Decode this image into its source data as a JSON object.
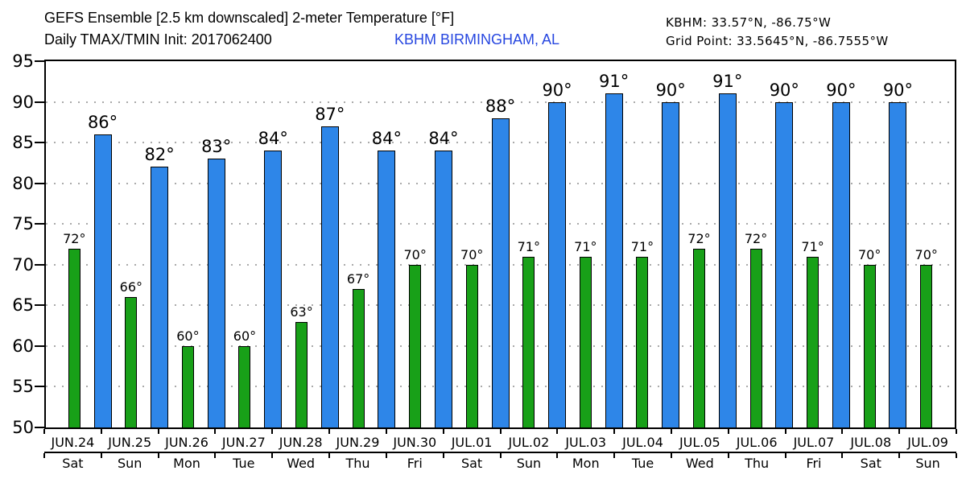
{
  "header": {
    "title_line1": "GEFS Ensemble [2.5 km downscaled] 2-meter Temperature [°F]",
    "title_line2": "Daily TMAX/TMIN Init: 2017062400",
    "station": "KBHM BIRMINGHAM, AL",
    "station_coords": "KBHM: 33.57°N, -86.75°W",
    "grid_point": "Grid Point: 33.5645°N, -86.7555°W"
  },
  "colors": {
    "tmax_bar": "#2e86e8",
    "tmin_bar": "#18a018",
    "bar_outline": "#000000",
    "station_text": "#2646e0",
    "grid_dots": "#aaaaaa",
    "axis": "#000000"
  },
  "chart_data": {
    "type": "bar",
    "title": "GEFS Ensemble [2.5 km downscaled] 2-meter Temperature [°F]",
    "subtitle": "Daily TMAX/TMIN Init: 2017062400",
    "station": "KBHM BIRMINGHAM, AL",
    "xlabel": "",
    "ylabel": "",
    "ylim": [
      50,
      95
    ],
    "yticks": [
      50,
      55,
      60,
      65,
      70,
      75,
      80,
      85,
      90,
      95
    ],
    "gridlines": [
      55,
      60,
      65,
      70,
      75,
      80,
      85,
      90
    ],
    "grid": "dotted-horizontal",
    "legend": "none",
    "categories": [
      "JUN.24",
      "JUN.25",
      "JUN.26",
      "JUN.27",
      "JUN.28",
      "JUN.29",
      "JUN.30",
      "JUL.01",
      "JUL.02",
      "JUL.03",
      "JUL.04",
      "JUL.05",
      "JUL.06",
      "JUL.07",
      "JUL.08",
      "JUL.09"
    ],
    "weekdays": [
      "Sat",
      "Sun",
      "Mon",
      "Tue",
      "Wed",
      "Thu",
      "Fri",
      "Sat",
      "Sun",
      "Mon",
      "Tue",
      "Wed",
      "Thu",
      "Fri",
      "Sat",
      "Sun"
    ],
    "series": [
      {
        "name": "TMIN",
        "color": "#18a018",
        "position": "day-center",
        "values": [
          72,
          66,
          60,
          60,
          63,
          67,
          70,
          70,
          71,
          71,
          71,
          72,
          72,
          71,
          70,
          70
        ],
        "labels": [
          "72°",
          "66°",
          "60°",
          "60°",
          "63°",
          "67°",
          "70°",
          "70°",
          "71°",
          "71°",
          "71°",
          "72°",
          "72°",
          "71°",
          "70°",
          "70°"
        ]
      },
      {
        "name": "TMAX",
        "color": "#2e86e8",
        "position": "day-boundary",
        "values": [
          86,
          82,
          83,
          84,
          87,
          84,
          84,
          88,
          90,
          91,
          90,
          91,
          90,
          90,
          90
        ],
        "labels": [
          "86°",
          "82°",
          "83°",
          "84°",
          "87°",
          "84°",
          "84°",
          "88°",
          "90°",
          "91°",
          "90°",
          "91°",
          "90°",
          "90°",
          "90°"
        ]
      }
    ]
  }
}
